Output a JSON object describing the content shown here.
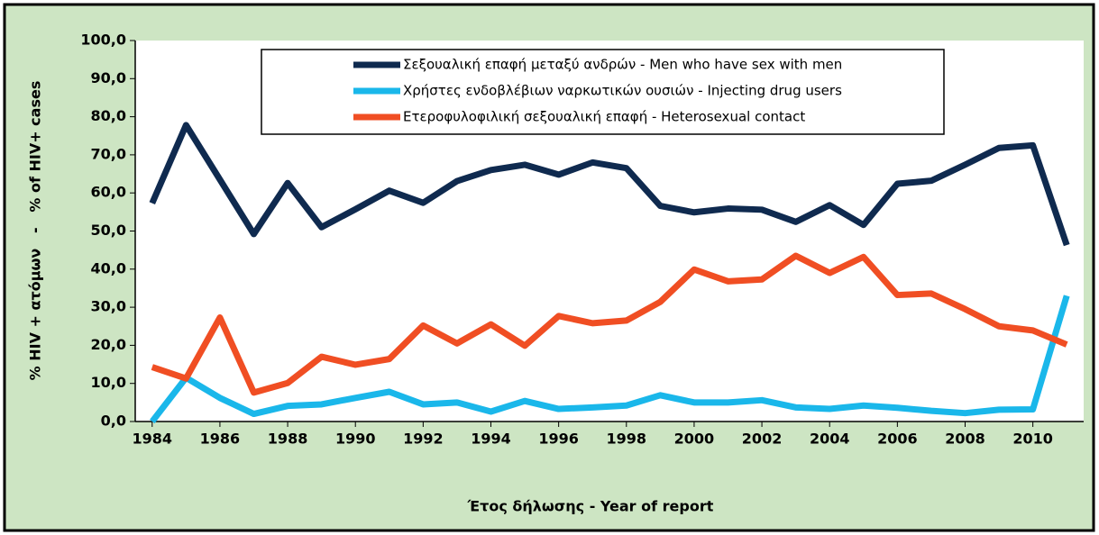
{
  "chart_data": {
    "type": "line",
    "x_label": "Έτος δήλωσης - Year of report",
    "y_label": "% HIV + ατόμων   -   % of HIV+ cases",
    "x": [
      1984,
      1985,
      1986,
      1987,
      1988,
      1989,
      1990,
      1991,
      1992,
      1993,
      1994,
      1995,
      1996,
      1997,
      1998,
      1999,
      2000,
      2001,
      2002,
      2003,
      2004,
      2005,
      2006,
      2007,
      2008,
      2009,
      2010,
      2011
    ],
    "series": [
      {
        "name": "Σεξουαλική επαφή μεταξύ ανδρών - Men who have sex with men",
        "color": "#0f2a4f",
        "values": [
          57.3,
          77.8,
          63.5,
          49.2,
          62.6,
          51.0,
          55.7,
          60.6,
          57.4,
          63.1,
          66.0,
          67.4,
          64.8,
          68.0,
          66.5,
          56.6,
          54.9,
          55.9,
          55.6,
          52.4,
          56.8,
          51.6,
          62.4,
          63.2,
          67.4,
          71.8,
          72.5,
          46.3
        ]
      },
      {
        "name": "Χρήστες ενδοβλέβιων ναρκωτικών ουσιών - Injecting drug users",
        "color": "#1ab7ea",
        "values": [
          0,
          11.5,
          6.2,
          2.0,
          4.1,
          4.5,
          6.2,
          7.8,
          4.5,
          5.0,
          2.6,
          5.4,
          3.3,
          3.7,
          4.2,
          6.9,
          5.0,
          5.0,
          5.6,
          3.7,
          3.3,
          4.2,
          3.6,
          2.8,
          2.2,
          3.1,
          3.2,
          33.0
        ]
      },
      {
        "name": "Ετεροφυλοφιλική σεξουαλική επαφή - Heterosexual contact",
        "color": "#f04e23",
        "values": [
          14.3,
          11.3,
          27.3,
          7.6,
          10.1,
          17.0,
          14.9,
          16.4,
          25.2,
          20.5,
          25.5,
          19.9,
          27.7,
          25.8,
          26.5,
          31.4,
          39.9,
          36.8,
          37.3,
          43.5,
          39.0,
          43.2,
          33.2,
          33.6,
          29.5,
          25.0,
          23.9,
          20.2
        ]
      }
    ],
    "xlim": [
      1983.5,
      2011.5
    ],
    "xticks": [
      1984,
      1986,
      1988,
      1990,
      1992,
      1994,
      1996,
      1998,
      2000,
      2002,
      2004,
      2006,
      2008,
      2010
    ],
    "ylim": [
      0,
      100
    ],
    "yticks": [
      {
        "value": 0,
        "label": "0,0"
      },
      {
        "value": 10,
        "label": "10,0"
      },
      {
        "value": 20,
        "label": "20,0"
      },
      {
        "value": 30,
        "label": "30,0"
      },
      {
        "value": 40,
        "label": "40,0"
      },
      {
        "value": 50,
        "label": "50,0"
      },
      {
        "value": 60,
        "label": "60,0"
      },
      {
        "value": 70,
        "label": "70,0"
      },
      {
        "value": 80,
        "label": "80,0"
      },
      {
        "value": 90,
        "label": "90,0"
      },
      {
        "value": 100,
        "label": "100,0"
      }
    ],
    "grid": false,
    "legend": "top"
  }
}
